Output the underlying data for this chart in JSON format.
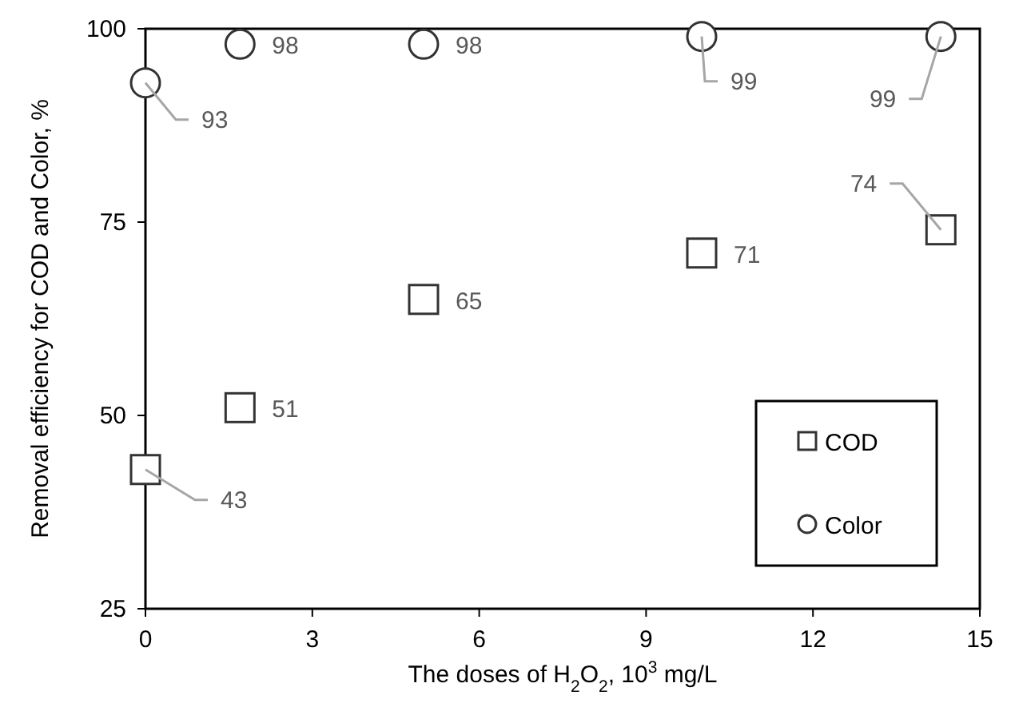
{
  "chart_data": {
    "type": "scatter",
    "xlabel": "The doses of H$_{2}$O$_{2}$, 10$^{3}$ mg/L",
    "ylabel": "Removal efficiency for COD and Color, %",
    "xlim": [
      0,
      15
    ],
    "xticks": [
      0,
      3,
      6,
      9,
      12,
      15
    ],
    "ylim": [
      25,
      100
    ],
    "yticks": [
      25,
      50,
      75,
      100
    ],
    "grid": false,
    "legend": "bottom right",
    "data_labels": true,
    "series": [
      {
        "name": "COD",
        "color": "#333333",
        "marker": "square",
        "x": [
          0,
          1.7,
          5,
          10,
          14.3
        ],
        "values": [
          43,
          51,
          65,
          71,
          74
        ]
      },
      {
        "name": "Color",
        "color": "#333333",
        "marker": "circle",
        "x": [
          0,
          1.7,
          5,
          10,
          14.3
        ],
        "values": [
          93,
          98,
          98,
          99,
          99
        ]
      }
    ]
  }
}
